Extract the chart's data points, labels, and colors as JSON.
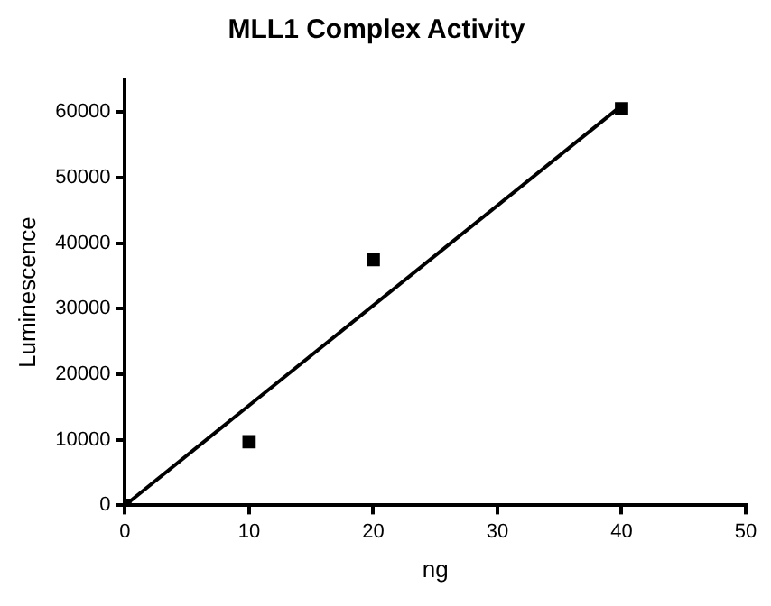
{
  "chart_data": {
    "type": "scatter",
    "title": "MLL1 Complex Activity",
    "xlabel": "ng",
    "ylabel": "Luminescence",
    "xlim": [
      0,
      50
    ],
    "xticks": [
      0,
      10,
      20,
      30,
      40,
      50
    ],
    "ylim": [
      0,
      65000
    ],
    "yticks": [
      0,
      10000,
      20000,
      30000,
      40000,
      50000,
      60000
    ],
    "grid": false,
    "legend": false,
    "marker": "square",
    "series": [
      {
        "type": "scatter",
        "color": "#000000",
        "x": [
          0,
          10,
          20,
          40
        ],
        "values": [
          0,
          9700,
          37500,
          60500
        ]
      },
      {
        "type": "line",
        "color": "#000000",
        "x": [
          0,
          40
        ],
        "values": [
          0,
          61000
        ],
        "marker": "none",
        "line_style": "solid"
      }
    ]
  }
}
